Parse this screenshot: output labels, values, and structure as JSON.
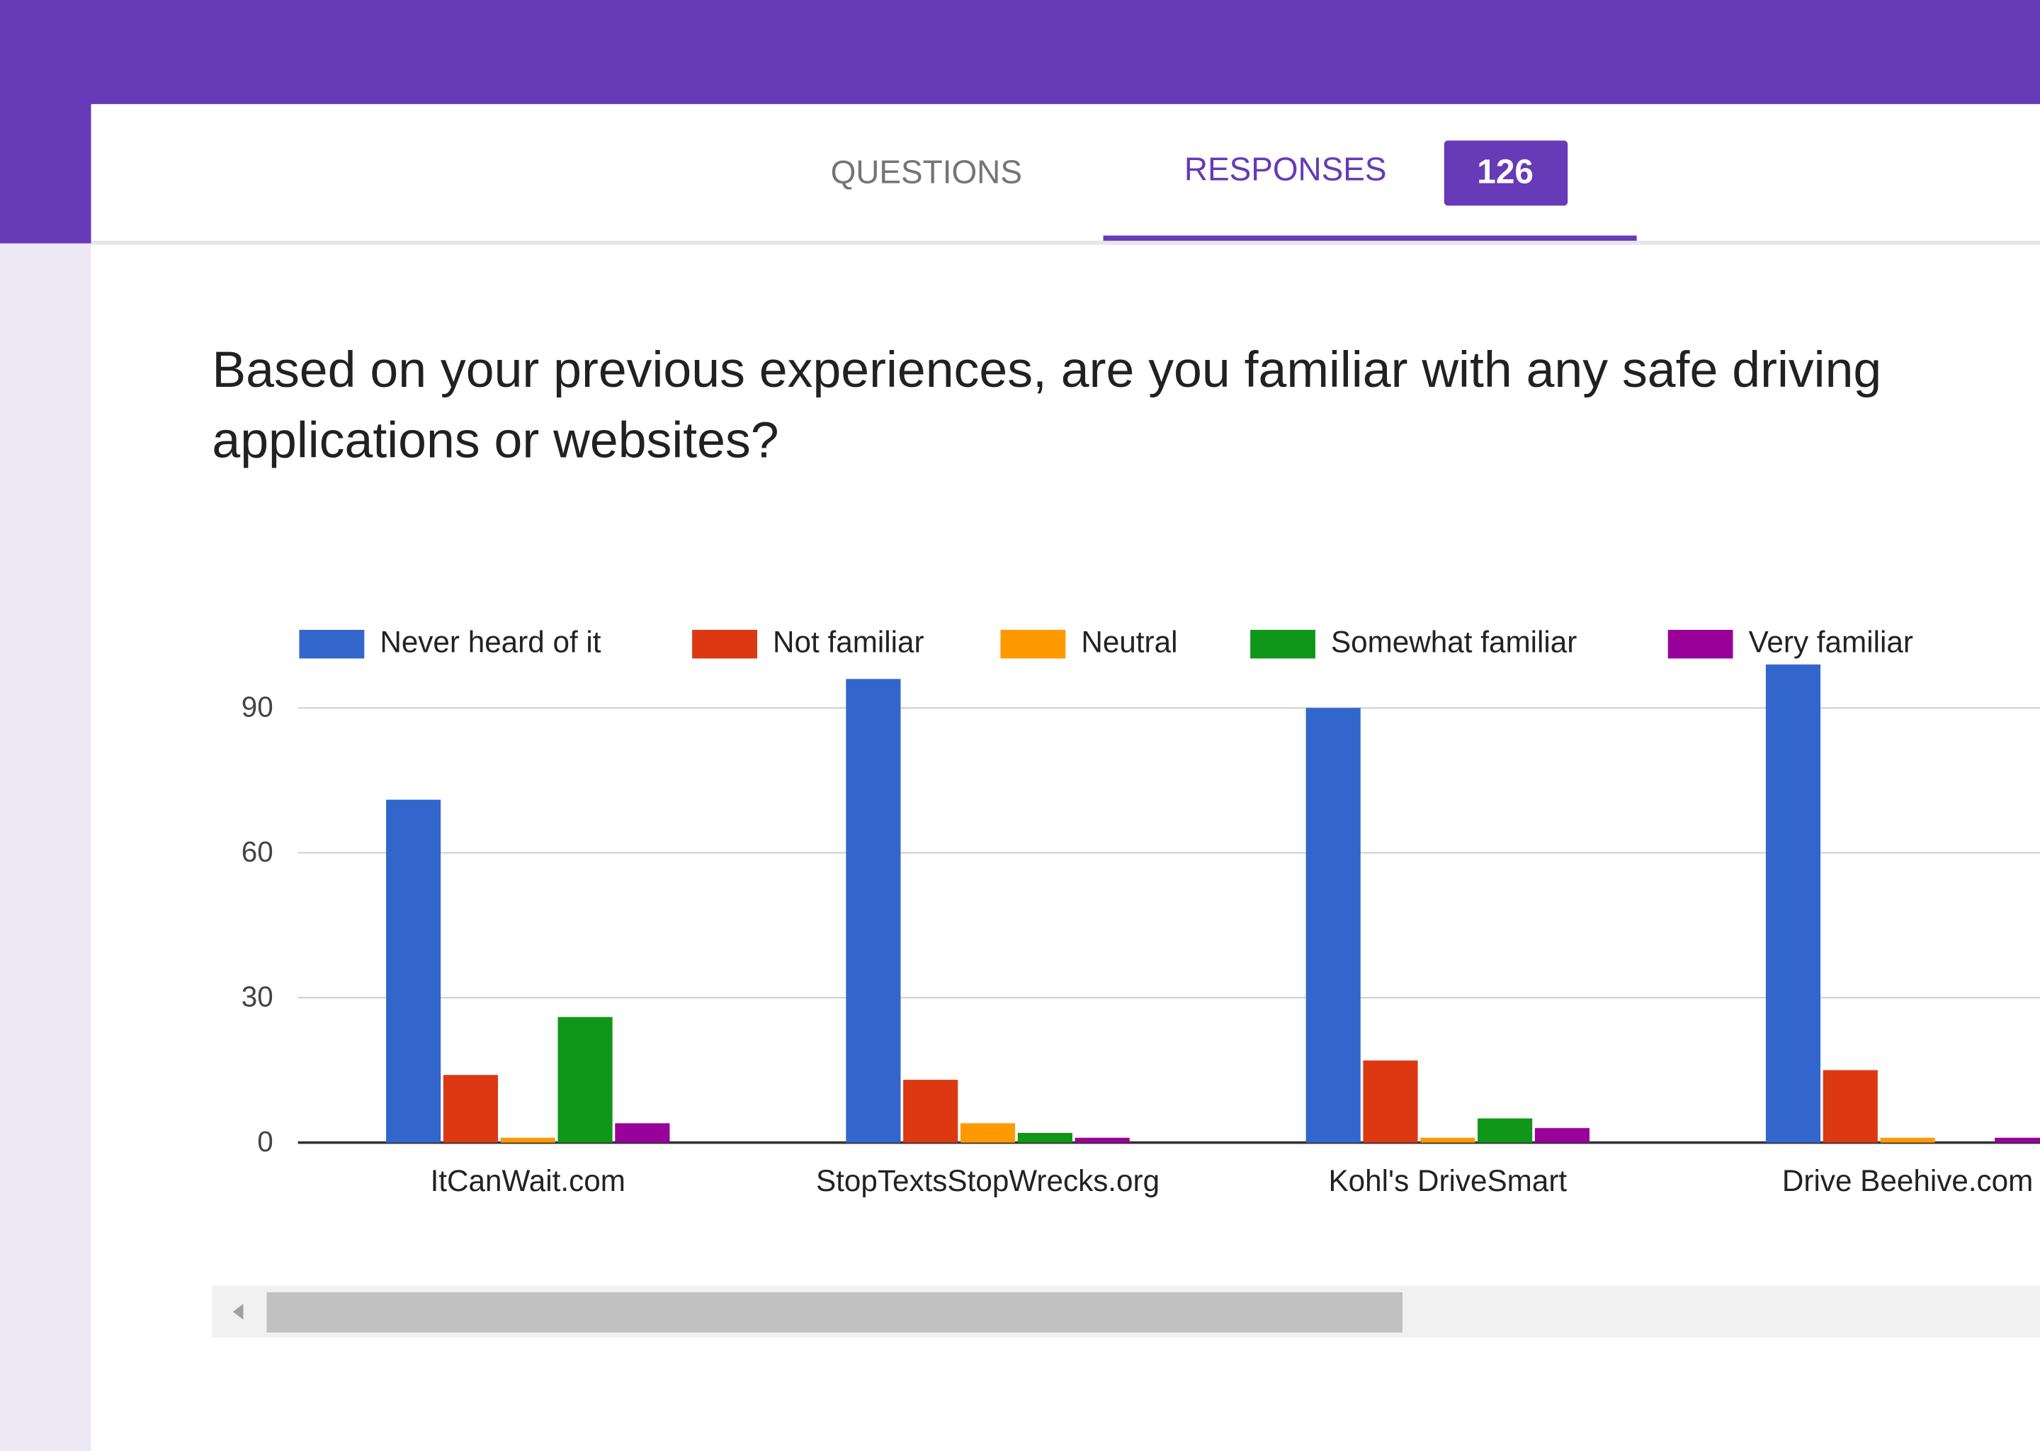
{
  "tabs": {
    "questions": "QUESTIONS",
    "responses": "RESPONSES",
    "count": "126"
  },
  "question": {
    "line1": "Based on your previous experiences, are you familiar with any safe driving",
    "line2": "applications or websites?"
  },
  "chart_data": {
    "type": "bar",
    "categories": [
      "ItCanWait.com",
      "StopTextsStopWrecks.org",
      "Kohl's DriveSmart",
      "Drive Beehive.com"
    ],
    "series": [
      {
        "name": "Never heard of it",
        "color": "#3366cc",
        "values": [
          71,
          96,
          90,
          99
        ]
      },
      {
        "name": "Not familiar",
        "color": "#dc3912",
        "values": [
          14,
          13,
          17,
          15
        ]
      },
      {
        "name": "Neutral",
        "color": "#ff9900",
        "values": [
          1,
          4,
          1,
          1
        ]
      },
      {
        "name": "Somewhat familiar",
        "color": "#109618",
        "values": [
          26,
          2,
          5,
          0
        ]
      },
      {
        "name": "Very familiar",
        "color": "#990099",
        "values": [
          4,
          1,
          3,
          1
        ]
      }
    ],
    "ylim": [
      0,
      100
    ],
    "yticks": [
      0,
      30,
      60,
      90
    ],
    "grid": true,
    "legend": "top"
  }
}
